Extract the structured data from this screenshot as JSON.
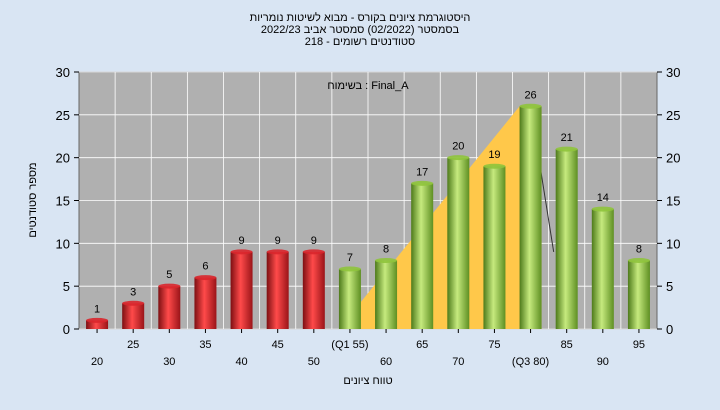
{
  "chart_data": {
    "type": "bar",
    "title_lines": [
      "היסטוגרמת ציונים בקורס - מבוא לשיטות נומריות",
      "בסמסטר  (02/2022)  סמסטר אביב 2022/23",
      "סטודנטים רשומים - 218"
    ],
    "annotation": "בשימוח : Final_A",
    "ylabel": "מספר סטודנטים",
    "xlabel": "טווח ציונים",
    "ylim": [
      0,
      30
    ],
    "yticks": [
      "0",
      "5",
      "10",
      "15",
      "20",
      "25",
      "30"
    ],
    "categories": [
      "20",
      "25",
      "30",
      "35",
      "40",
      "45",
      "50",
      "(Q1 55)",
      "60",
      "65",
      "70",
      "75",
      "(Q3 80)",
      "85",
      "90",
      "95"
    ],
    "values": [
      1,
      3,
      5,
      6,
      9,
      9,
      9,
      7,
      8,
      17,
      20,
      19,
      26,
      21,
      14,
      8
    ],
    "bar_colors": [
      "#d9262c",
      "#d9262c",
      "#d9262c",
      "#d9262c",
      "#d9262c",
      "#d9262c",
      "#d9262c",
      "#8fc43c",
      "#8fc43c",
      "#8fc43c",
      "#8fc43c",
      "#8fc43c",
      "#8fc43c",
      "#8fc43c",
      "#8fc43c",
      "#8fc43c"
    ],
    "iqr_band_color": "#ffc84a",
    "iqr_start_category": "(Q1 55)",
    "iqr_peak_category": "(Q3 80)",
    "plot_background": "#b0b0b0",
    "grid": true
  }
}
